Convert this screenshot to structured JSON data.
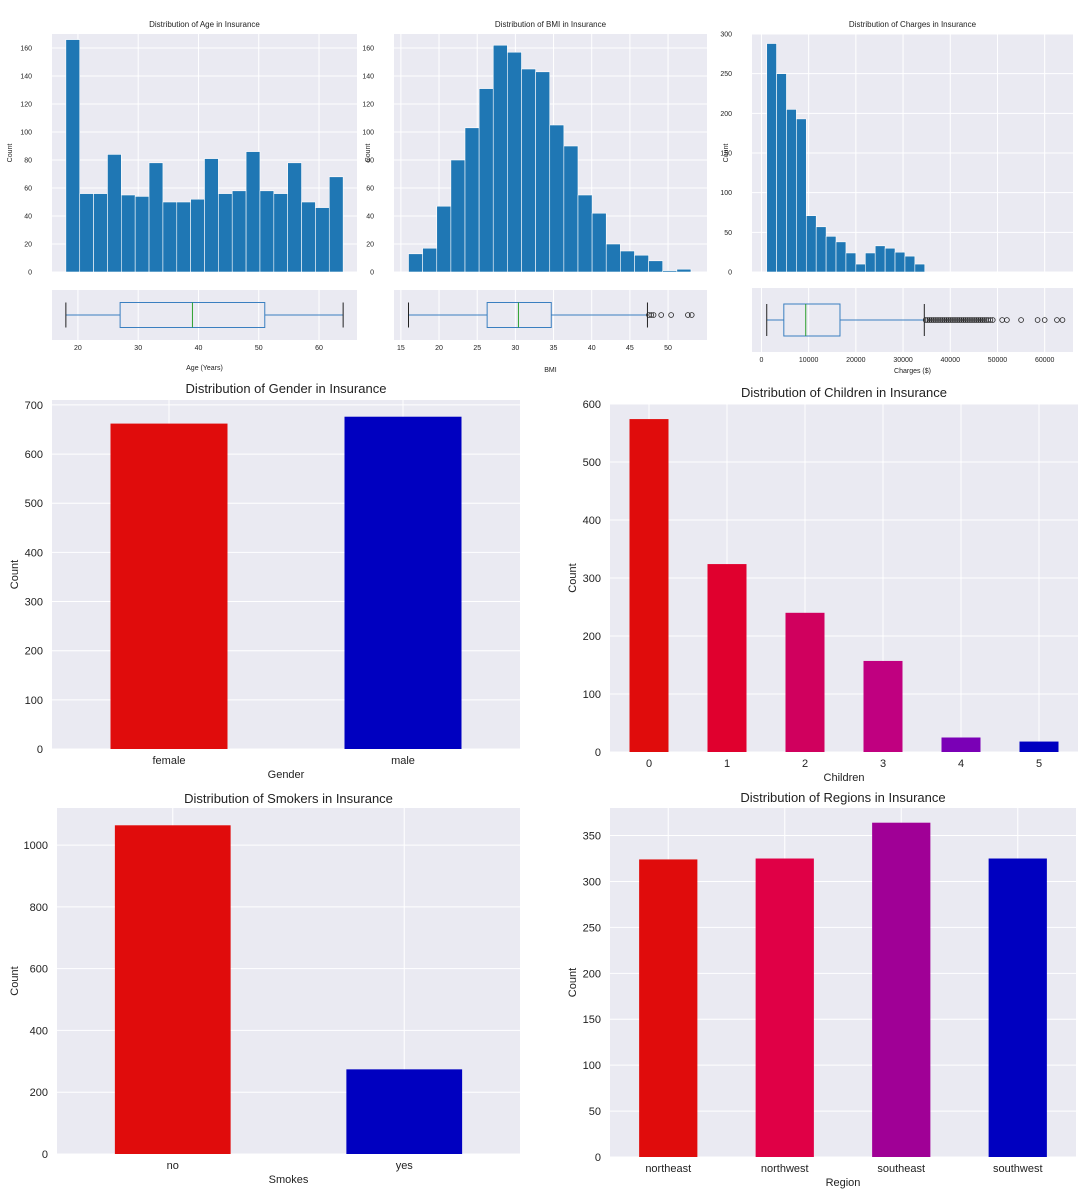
{
  "chart_data": [
    {
      "id": "age",
      "type": "histogram",
      "title": "Distribution of Age in Insurance",
      "xlabel": "Age (Years)",
      "ylabel": "Count",
      "xlim": [
        15.7,
        66.3
      ],
      "ylim": [
        0,
        170
      ],
      "xticks": [
        20,
        30,
        40,
        50,
        60
      ],
      "yticks": [
        0,
        20,
        40,
        60,
        80,
        100,
        120,
        140,
        160
      ],
      "bin_edges": [
        18,
        20.3,
        22.6,
        24.9,
        27.2,
        29.5,
        31.8,
        34.1,
        36.4,
        38.7,
        41,
        43.3,
        45.6,
        47.9,
        50.2,
        52.5,
        54.8,
        57.1,
        59.4,
        61.7,
        64
      ],
      "counts": [
        166,
        56,
        56,
        84,
        55,
        54,
        78,
        50,
        50,
        52,
        81,
        56,
        58,
        86,
        58,
        56,
        78,
        50,
        46,
        68
      ],
      "box": {
        "min": 18,
        "q1": 27,
        "median": 39,
        "q3": 51,
        "max": 64,
        "outliers": []
      },
      "color": "#1f77b4"
    },
    {
      "id": "bmi",
      "type": "histogram",
      "title": "Distribution of BMI in Insurance",
      "xlabel": "BMI",
      "ylabel": "Count",
      "xlim": [
        14.1,
        55.1
      ],
      "ylim": [
        0,
        170
      ],
      "xticks": [
        15,
        20,
        25,
        30,
        35,
        40,
        45,
        50
      ],
      "yticks": [
        0,
        20,
        40,
        60,
        80,
        100,
        120,
        140,
        160
      ],
      "bin_edges": [
        16.0,
        17.85,
        19.7,
        21.55,
        23.4,
        25.25,
        27.1,
        28.95,
        30.8,
        32.65,
        34.5,
        36.35,
        38.2,
        40.05,
        41.9,
        43.75,
        45.6,
        47.45,
        49.3,
        51.15,
        53.0
      ],
      "counts": [
        13,
        17,
        47,
        80,
        103,
        131,
        162,
        157,
        145,
        143,
        105,
        90,
        55,
        42,
        20,
        15,
        12,
        8,
        1,
        2
      ],
      "box": {
        "min": 16.0,
        "q1": 26.3,
        "median": 30.4,
        "q3": 34.7,
        "max": 47.3,
        "outliers": [
          47.5,
          47.8,
          48.1,
          49.1,
          50.4,
          52.6,
          53.1
        ]
      },
      "color": "#1f77b4"
    },
    {
      "id": "charges",
      "type": "histogram",
      "title": "Distribution of Charges in Insurance",
      "xlabel": "Charges ($)",
      "ylabel": "Count",
      "xlim": [
        -2000,
        66000
      ],
      "ylim": [
        0,
        300
      ],
      "xticks": [
        0,
        10000,
        20000,
        30000,
        40000,
        50000,
        60000
      ],
      "yticks": [
        0,
        50,
        100,
        150,
        200,
        250,
        300
      ],
      "bin_edges": [
        1120,
        3200,
        5300,
        7400,
        9500,
        11600,
        13700,
        15800,
        17900,
        20000,
        22000,
        24100,
        26200,
        28300,
        30400,
        32500,
        34600,
        36700,
        38800,
        40900,
        43000,
        45000,
        47100,
        49200,
        51300,
        53400,
        55400,
        57500,
        59600,
        61700,
        63770
      ],
      "counts": [
        288,
        250,
        205,
        193,
        71,
        57,
        45,
        38,
        24,
        10,
        24,
        33,
        30,
        25,
        20,
        10,
        0,
        0,
        0,
        0,
        0,
        0,
        0,
        0,
        0,
        0,
        0,
        0,
        0,
        0
      ],
      "box": {
        "min": 1122,
        "q1": 4740,
        "median": 9382,
        "q3": 16640,
        "max": 34500,
        "outliers": [
          34800,
          35200,
          35600,
          36000,
          36400,
          36800,
          37200,
          37600,
          38000,
          38400,
          38800,
          39200,
          39600,
          40000,
          40400,
          40800,
          41200,
          41600,
          42000,
          42400,
          42800,
          43200,
          43600,
          44000,
          44400,
          44800,
          45200,
          45600,
          46000,
          46400,
          46800,
          47200,
          47600,
          48000,
          48500,
          49000,
          51000,
          52000,
          55000,
          58500,
          60000,
          62600,
          63770
        ]
      },
      "color": "#1f77b4"
    },
    {
      "id": "gender",
      "type": "bar",
      "title": "Distribution of Gender in Insurance",
      "xlabel": "Gender",
      "ylabel": "Count",
      "ylim": [
        0,
        710
      ],
      "yticks": [
        0,
        100,
        200,
        300,
        400,
        500,
        600,
        700
      ],
      "categories": [
        "female",
        "male"
      ],
      "values": [
        662,
        676
      ],
      "colors": [
        "#e00c0c",
        "#0000c0"
      ]
    },
    {
      "id": "children",
      "type": "bar",
      "title": "Distribution of Children in Insurance",
      "xlabel": "Children",
      "ylabel": "Count",
      "ylim": [
        0,
        600
      ],
      "yticks": [
        0,
        100,
        200,
        300,
        400,
        500,
        600
      ],
      "categories": [
        "0",
        "1",
        "2",
        "3",
        "4",
        "5"
      ],
      "values": [
        574,
        324,
        240,
        157,
        25,
        18
      ],
      "colors": [
        "#e00c0c",
        "#e0002e",
        "#d0005e",
        "#c00080",
        "#7a00b6",
        "#0000c0"
      ]
    },
    {
      "id": "smokers",
      "type": "bar",
      "title": "Distribution of Smokers in Insurance",
      "xlabel": "Smokes",
      "ylabel": "Count",
      "ylim": [
        0,
        1120
      ],
      "yticks": [
        0,
        200,
        400,
        600,
        800,
        1000
      ],
      "categories": [
        "no",
        "yes"
      ],
      "values": [
        1064,
        274
      ],
      "colors": [
        "#e00c0c",
        "#0000c0"
      ]
    },
    {
      "id": "regions",
      "type": "bar",
      "title": "Distribution of Regions in Insurance",
      "xlabel": "Region",
      "ylabel": "Count",
      "ylim": [
        0,
        380
      ],
      "yticks": [
        0,
        50,
        100,
        150,
        200,
        250,
        300,
        350
      ],
      "categories": [
        "northeast",
        "northwest",
        "southeast",
        "southwest"
      ],
      "values": [
        324,
        325,
        364,
        325
      ],
      "colors": [
        "#e00c0c",
        "#e00046",
        "#a00096",
        "#0000c0"
      ]
    }
  ]
}
